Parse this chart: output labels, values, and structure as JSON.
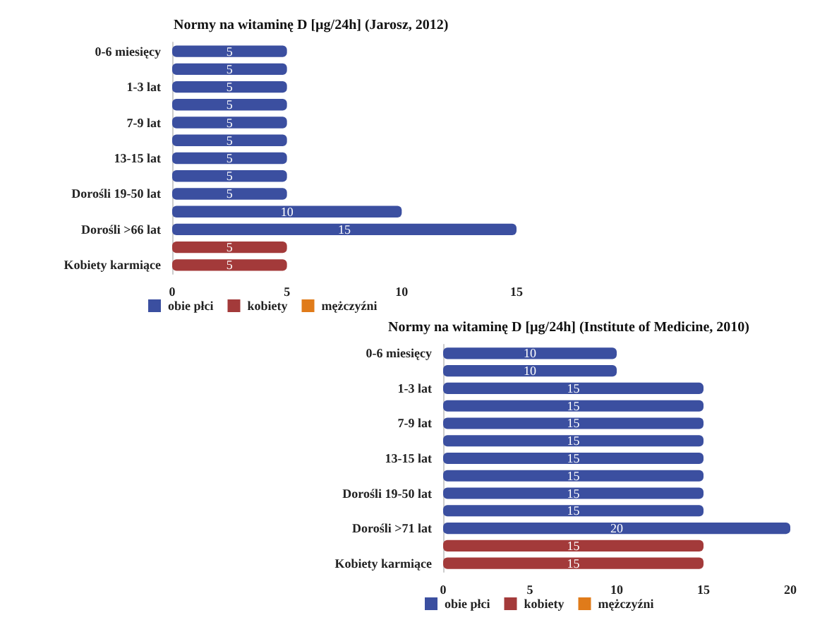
{
  "chart_data": [
    {
      "type": "bar",
      "orientation": "horizontal",
      "stacked": true,
      "title": "Normy na witaminę D [µg/24h] (Jarosz, 2012)",
      "categories": [
        "0-6 miesięcy",
        null,
        "1-3 lat",
        null,
        "7-9 lat",
        null,
        "13-15 lat",
        null,
        "Dorośli 19-50 lat",
        null,
        "Dorośli >66 lat",
        null,
        "Kobiety karmiące"
      ],
      "series": [
        {
          "name": "obie płci",
          "color": "#3b4fa0",
          "values": [
            5,
            5,
            5,
            5,
            5,
            5,
            5,
            5,
            5,
            10,
            15,
            null,
            null
          ]
        },
        {
          "name": "kobiety",
          "color": "#a33a3a",
          "values": [
            null,
            null,
            null,
            null,
            null,
            null,
            null,
            null,
            null,
            null,
            null,
            5,
            5
          ]
        },
        {
          "name": "mężczyźni",
          "color": "#e07b1a",
          "values": [
            null,
            null,
            null,
            null,
            null,
            null,
            null,
            null,
            null,
            null,
            null,
            null,
            null
          ]
        }
      ],
      "xlim": [
        0,
        15
      ],
      "xticks": [
        0,
        5,
        10,
        15
      ],
      "data_labels": true,
      "grid": false,
      "legend": "bottom"
    },
    {
      "type": "bar",
      "orientation": "horizontal",
      "stacked": true,
      "title": "Normy na witaminę D [µg/24h] (Institute of Medicine, 2010)",
      "categories": [
        "0-6 miesięcy",
        null,
        "1-3 lat",
        null,
        "7-9 lat",
        null,
        "13-15 lat",
        null,
        "Dorośli 19-50 lat",
        null,
        "Dorośli >71 lat",
        null,
        "Kobiety karmiące"
      ],
      "series": [
        {
          "name": "obie płci",
          "color": "#3b4fa0",
          "values": [
            10,
            10,
            15,
            15,
            15,
            15,
            15,
            15,
            15,
            15,
            20,
            null,
            null
          ]
        },
        {
          "name": "kobiety",
          "color": "#a33a3a",
          "values": [
            null,
            null,
            null,
            null,
            null,
            null,
            null,
            null,
            null,
            null,
            null,
            15,
            15
          ]
        },
        {
          "name": "mężczyźni",
          "color": "#e07b1a",
          "values": [
            null,
            null,
            null,
            null,
            null,
            null,
            null,
            null,
            null,
            null,
            null,
            null,
            null
          ]
        }
      ],
      "xlim": [
        0,
        20
      ],
      "xticks": [
        0,
        5,
        10,
        15,
        20
      ],
      "data_labels": true,
      "grid": false,
      "legend": "bottom"
    }
  ]
}
